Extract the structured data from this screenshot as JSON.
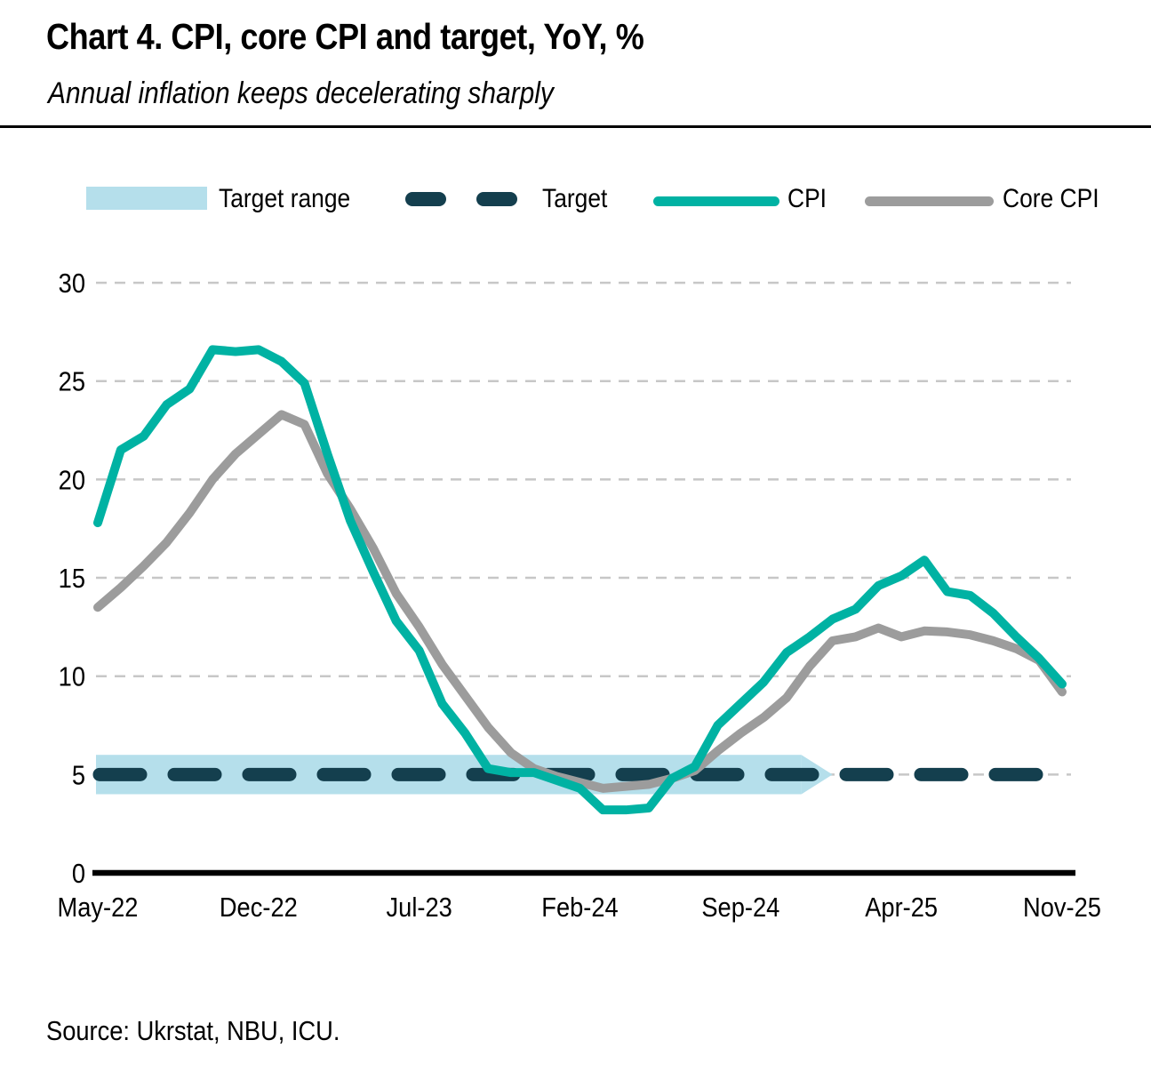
{
  "header": {
    "title": "Chart 4. CPI, core CPI and target, YoY, %",
    "subtitle": "Annual inflation keeps decelerating sharply"
  },
  "legend": {
    "items": [
      {
        "label": "Target range",
        "swatch": "band",
        "color": "#b5dfeb"
      },
      {
        "label": "Target",
        "swatch": "dashed-line",
        "color": "#143f4e"
      },
      {
        "label": "CPI",
        "swatch": "line",
        "color": "#00b2a3"
      },
      {
        "label": "Core CPI",
        "swatch": "line",
        "color": "#9c9c9c"
      }
    ]
  },
  "source": {
    "text": "Source: Ukrstat, NBU, ICU."
  },
  "chart_data": {
    "type": "line",
    "title": "Chart 4. CPI, core CPI and target, YoY, %",
    "subtitle": "Annual inflation keeps decelerating sharply",
    "ylabel": "YoY, %",
    "ylim": [
      0,
      30
    ],
    "yticks": [
      0,
      5,
      10,
      15,
      20,
      25,
      30
    ],
    "grid": {
      "horizontal": true,
      "style": "dashed",
      "color": "#c7c7c7"
    },
    "legend_position": "top",
    "categories": [
      "May-22",
      "Jun-22",
      "Jul-22",
      "Aug-22",
      "Sep-22",
      "Oct-22",
      "Nov-22",
      "Dec-22",
      "Jan-23",
      "Feb-23",
      "Mar-23",
      "Apr-23",
      "May-23",
      "Jun-23",
      "Jul-23",
      "Aug-23",
      "Sep-23",
      "Oct-23",
      "Nov-23",
      "Dec-23",
      "Jan-24",
      "Feb-24",
      "Mar-24",
      "Apr-24",
      "May-24",
      "Jun-24",
      "Jul-24",
      "Aug-24",
      "Sep-24",
      "Oct-24",
      "Nov-24",
      "Dec-24",
      "Jan-25",
      "Feb-25",
      "Mar-25",
      "Apr-25",
      "May-25",
      "Jun-25",
      "Jul-25",
      "Aug-25",
      "Sep-25",
      "Oct-25",
      "Nov-25"
    ],
    "xtick_indices": [
      0,
      7,
      14,
      21,
      28,
      35,
      42
    ],
    "xtick_labels": [
      "May-22",
      "Dec-22",
      "Jul-23",
      "Feb-24",
      "Sep-24",
      "Apr-25",
      "Nov-25"
    ],
    "series": [
      {
        "name": "CPI",
        "color": "#00b2a3",
        "values": [
          17.8,
          21.5,
          22.2,
          23.8,
          24.6,
          26.6,
          26.5,
          26.6,
          26.0,
          24.9,
          21.3,
          17.9,
          15.3,
          12.8,
          11.3,
          8.6,
          7.1,
          5.3,
          5.1,
          5.1,
          4.7,
          4.3,
          3.2,
          3.2,
          3.3,
          4.8,
          5.4,
          7.5,
          8.6,
          9.7,
          11.2,
          12.0,
          12.9,
          13.4,
          14.6,
          15.1,
          15.9,
          14.3,
          14.1,
          13.2,
          12.0,
          10.9,
          9.6
        ]
      },
      {
        "name": "Core CPI",
        "color": "#9c9c9c",
        "values": [
          13.5,
          14.5,
          15.6,
          16.8,
          18.3,
          20.0,
          21.3,
          22.3,
          23.3,
          22.8,
          20.3,
          18.5,
          16.5,
          14.2,
          12.5,
          10.6,
          9.0,
          7.4,
          6.1,
          5.3,
          4.9,
          4.6,
          4.3,
          4.4,
          4.5,
          4.8,
          5.2,
          6.2,
          7.1,
          7.9,
          8.9,
          10.5,
          11.8,
          12.0,
          12.45,
          12.0,
          12.3,
          12.25,
          12.1,
          11.8,
          11.4,
          10.8,
          9.2
        ]
      }
    ],
    "target_line": {
      "name": "Target",
      "value": 5,
      "color": "#143f4e",
      "style": "dashed"
    },
    "target_range": {
      "name": "Target range",
      "low": 4,
      "high": 6,
      "color": "#b5dfeb",
      "arrow_tip_index": 32
    }
  }
}
